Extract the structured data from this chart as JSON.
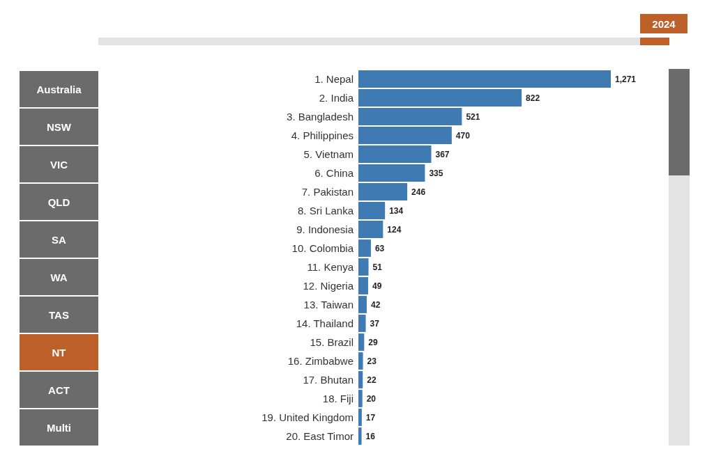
{
  "chart_data": {
    "type": "bar",
    "orientation": "horizontal",
    "subtitle": "2024",
    "categories": [
      "1. Nepal",
      "2. India",
      "3. Bangladesh",
      "4. Philippines",
      "5. Vietnam",
      "6. China",
      "7. Pakistan",
      "8. Sri Lanka",
      "9. Indonesia",
      "10. Colombia",
      "11. Kenya",
      "12. Nigeria",
      "13. Taiwan",
      "14. Thailand",
      "15. Brazil",
      "16. Zimbabwe",
      "17. Bhutan",
      "18. Fiji",
      "19. United Kingdom",
      "20. East Timor"
    ],
    "values": [
      1271,
      822,
      521,
      470,
      367,
      335,
      246,
      134,
      124,
      63,
      51,
      49,
      42,
      37,
      29,
      23,
      22,
      20,
      17,
      16
    ],
    "value_labels": [
      "1,271",
      "822",
      "521",
      "470",
      "367",
      "335",
      "246",
      "134",
      "124",
      "63",
      "51",
      "49",
      "42",
      "37",
      "29",
      "23",
      "22",
      "20",
      "17",
      "16"
    ],
    "color": "#3f7ab3",
    "annotations": [
      "Australia",
      "NSW",
      "VIC",
      "QLD",
      "SA",
      "WA",
      "TAS",
      "NT",
      "ACT",
      "Multi"
    ],
    "tick_labels": "y"
  }
}
